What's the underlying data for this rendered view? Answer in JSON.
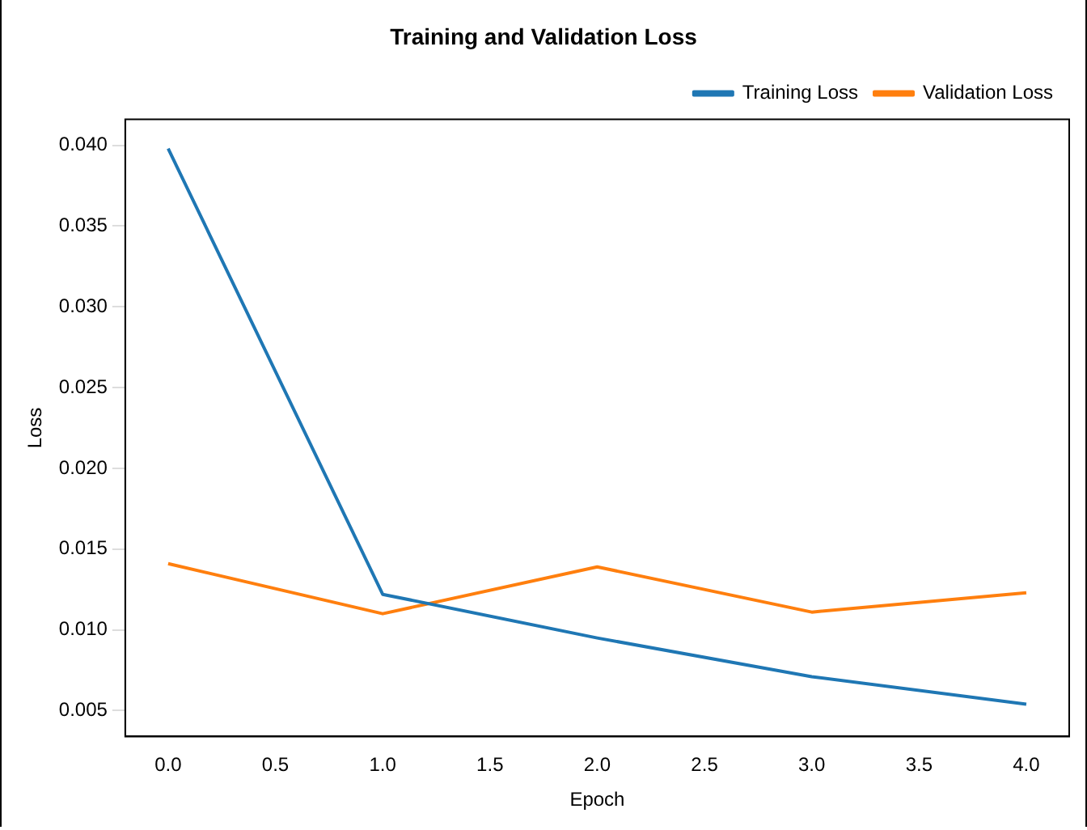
{
  "chart_data": {
    "type": "line",
    "title": "Training and Validation Loss",
    "xlabel": "Epoch",
    "ylabel": "Loss",
    "x": [
      0,
      1,
      2,
      3,
      4
    ],
    "series": [
      {
        "name": "Training Loss",
        "color": "#1f77b4",
        "values": [
          0.0398,
          0.0122,
          0.0095,
          0.0071,
          0.0054
        ]
      },
      {
        "name": "Validation Loss",
        "color": "#ff7f0e",
        "values": [
          0.0141,
          0.011,
          0.0139,
          0.0111,
          0.0123
        ]
      }
    ],
    "xlim": [
      -0.2,
      4.2
    ],
    "xticks": [
      {
        "value": 0,
        "label": "0.0"
      },
      {
        "value": 0.5,
        "label": "0.5"
      },
      {
        "value": 1,
        "label": "1.0"
      },
      {
        "value": 1.5,
        "label": "1.5"
      },
      {
        "value": 2,
        "label": "2.0"
      },
      {
        "value": 2.5,
        "label": "2.5"
      },
      {
        "value": 3,
        "label": "3.0"
      },
      {
        "value": 3.5,
        "label": "3.5"
      },
      {
        "value": 4,
        "label": "4.0"
      }
    ],
    "ylim": [
      0.0034,
      0.0416
    ],
    "yticks": [
      {
        "value": 0.005,
        "label": "0.005"
      },
      {
        "value": 0.01,
        "label": "0.010"
      },
      {
        "value": 0.015,
        "label": "0.015"
      },
      {
        "value": 0.02,
        "label": "0.020"
      },
      {
        "value": 0.025,
        "label": "0.025"
      },
      {
        "value": 0.03,
        "label": "0.030"
      },
      {
        "value": 0.035,
        "label": "0.035"
      },
      {
        "value": 0.04,
        "label": "0.040"
      }
    ],
    "legend": "top right",
    "grid": false,
    "marker": "none",
    "line_style": "solid"
  }
}
